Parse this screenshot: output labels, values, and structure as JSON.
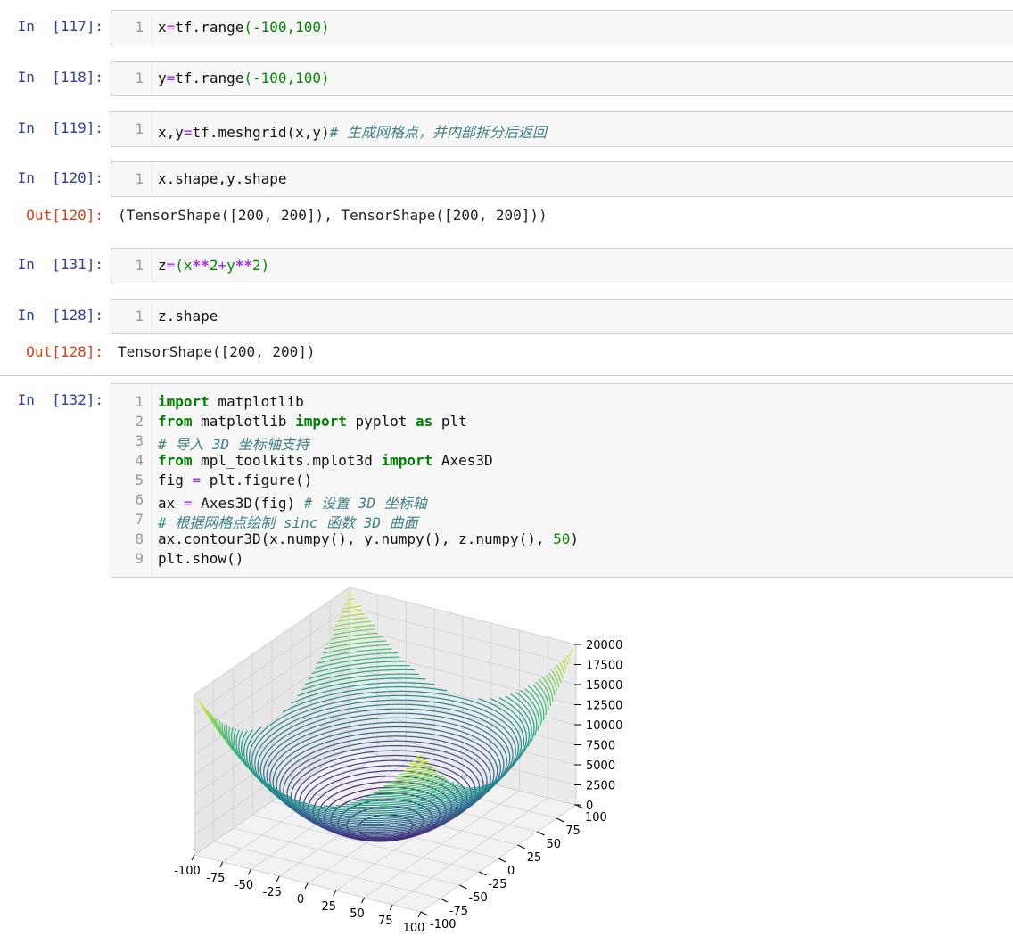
{
  "cells": [
    {
      "prompt": "In  [117]:",
      "line": "1",
      "code": [
        [
          "x",
          "",
          "plain"
        ],
        [
          "=",
          "",
          "eq"
        ],
        [
          "tf.range",
          "",
          "plain"
        ],
        [
          "(-100,100)",
          "",
          "par"
        ]
      ]
    },
    {
      "prompt": "In  [118]:",
      "line": "1",
      "code": [
        [
          "y",
          "",
          "plain"
        ],
        [
          "=",
          "",
          "eq"
        ],
        [
          "tf.range",
          "",
          "plain"
        ],
        [
          "(-100,100)",
          "",
          "par"
        ]
      ]
    },
    {
      "prompt": "In  [119]:",
      "line": "1",
      "code_plain": "x,y",
      "code_eq": "=",
      "code_rest": "tf.meshgrid(x,y)",
      "comment": "# 生成网格点，并内部拆分后返回"
    },
    {
      "prompt": "In  [120]:",
      "line": "1",
      "code_plain": "x.shape,y.shape",
      "out_prompt": "Out[120]:",
      "output": "(TensorShape([200, 200]), TensorShape([200, 200]))"
    },
    {
      "prompt": "In  [131]:",
      "line": "1",
      "c1": "z",
      "c2": "=",
      "c3": "(x",
      "c4": "**",
      "c5": "2",
      "c6": "+",
      "c7": "y",
      "c8": "**",
      "c9": "2)"
    },
    {
      "prompt": "In  [128]:",
      "line": "1",
      "code_plain": "z.shape",
      "out_prompt": "Out[128]:",
      "output": "TensorShape([200, 200])"
    },
    {
      "prompt": "In  [132]:"
    }
  ],
  "cell7_lines": {
    "numbers": [
      "1",
      "2",
      "3",
      "4",
      "5",
      "6",
      "7",
      "8",
      "9"
    ],
    "l1_kw": "import",
    "l1_rest": " matplotlib",
    "l2_kw1": "from",
    "l2_mid": " matplotlib ",
    "l2_kw2": "import",
    "l2_mid2": " pyplot ",
    "l2_kw3": "as",
    "l2_rest": " plt",
    "l3_cm": "# 导入 3D 坐标轴支持",
    "l4_kw1": "from",
    "l4_mid": " mpl_toolkits.mplot3d ",
    "l4_kw2": "import",
    "l4_rest": " Axes3D",
    "l5_a": "fig ",
    "l5_eq": "=",
    "l5_b": " plt.figure()",
    "l6_a": "ax ",
    "l6_eq": "=",
    "l6_b": " Axes3D(fig) ",
    "l6_cm": "# 设置 3D 坐标轴",
    "l7_cm": "# 根据网格点绘制 sinc 函数 3D 曲面",
    "l8_a": "ax.contour3D(x.numpy(), y.numpy(), z.numpy(), ",
    "l8_num": "50",
    "l8_b": ")",
    "l9": "plt.show()"
  },
  "chart_data": {
    "type": "contour3d",
    "function": "z = x**2 + y**2",
    "levels": 50,
    "colormap": "viridis",
    "x_ticks": [
      "-100",
      "-75",
      "-50",
      "-25",
      "0",
      "25",
      "50",
      "75",
      "100"
    ],
    "y_ticks": [
      "-100",
      "-75",
      "-50",
      "-25",
      "0",
      "25",
      "50",
      "75",
      "100"
    ],
    "z_ticks": [
      "0",
      "2500",
      "5000",
      "7500",
      "10000",
      "12500",
      "15000",
      "17500",
      "20000"
    ],
    "xlim": [
      -100,
      100
    ],
    "ylim": [
      -100,
      100
    ],
    "zlim": [
      0,
      20000
    ],
    "grid": true
  }
}
